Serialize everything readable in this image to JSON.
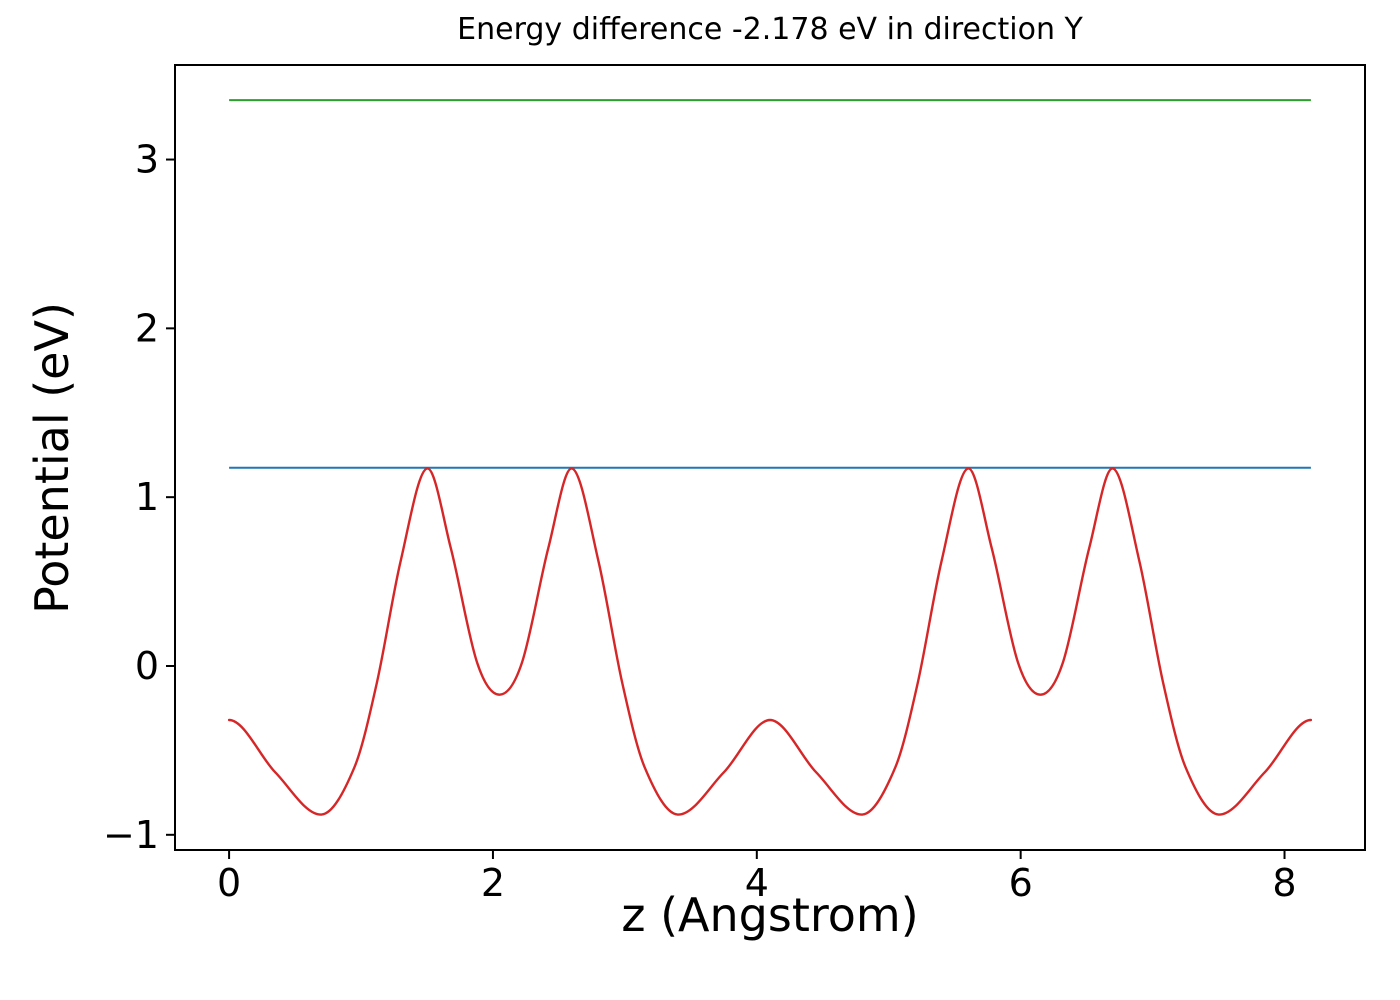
{
  "figure": {
    "background": "#ffffff",
    "spine_color": "#000000"
  },
  "chart_data": {
    "type": "line",
    "title": "Energy difference -2.178 eV in direction Y",
    "xlabel": "z (Angstrom)",
    "ylabel": "Potential (eV)",
    "energy_difference_eV": -2.178,
    "direction": "Y",
    "xlim": [
      -0.41,
      8.61
    ],
    "ylim": [
      -1.09,
      3.56
    ],
    "xticks": [
      0,
      2,
      4,
      6,
      8
    ],
    "xtick_labels": [
      "0",
      "2",
      "4",
      "6",
      "8"
    ],
    "yticks": [
      -1,
      0,
      1,
      2,
      3
    ],
    "ytick_labels": [
      "−1",
      "0",
      "1",
      "2",
      "3"
    ],
    "grid": false,
    "legend": null,
    "series": [
      {
        "name": "upper-reference-level",
        "type": "hline",
        "color": "#2ca02c",
        "y": 3.352,
        "x_start": 0,
        "x_end": 8.2
      },
      {
        "name": "lower-reference-level",
        "type": "hline",
        "color": "#1f77b4",
        "y": 1.174,
        "x_start": 0,
        "x_end": 8.2
      },
      {
        "name": "planar-average-potential",
        "type": "curve",
        "color": "#d62728",
        "points": [
          [
            0.0,
            -0.32
          ],
          [
            0.35,
            -0.63
          ],
          [
            0.7,
            -0.88
          ],
          [
            0.95,
            -0.6
          ],
          [
            1.12,
            -0.1
          ],
          [
            1.3,
            0.62
          ],
          [
            1.5,
            1.17
          ],
          [
            1.68,
            0.7
          ],
          [
            1.88,
            0.02
          ],
          [
            2.05,
            -0.17
          ],
          [
            2.22,
            0.02
          ],
          [
            2.42,
            0.7
          ],
          [
            2.6,
            1.17
          ],
          [
            2.8,
            0.62
          ],
          [
            2.98,
            -0.1
          ],
          [
            3.15,
            -0.6
          ],
          [
            3.4,
            -0.88
          ],
          [
            3.75,
            -0.63
          ],
          [
            4.1,
            -0.32
          ],
          [
            4.45,
            -0.63
          ],
          [
            4.8,
            -0.88
          ],
          [
            5.05,
            -0.6
          ],
          [
            5.22,
            -0.1
          ],
          [
            5.4,
            0.62
          ],
          [
            5.6,
            1.17
          ],
          [
            5.78,
            0.7
          ],
          [
            5.98,
            0.02
          ],
          [
            6.15,
            -0.17
          ],
          [
            6.32,
            0.02
          ],
          [
            6.52,
            0.7
          ],
          [
            6.7,
            1.17
          ],
          [
            6.9,
            0.62
          ],
          [
            7.08,
            -0.1
          ],
          [
            7.25,
            -0.6
          ],
          [
            7.5,
            -0.88
          ],
          [
            7.85,
            -0.63
          ],
          [
            8.2,
            -0.32
          ]
        ]
      }
    ]
  }
}
